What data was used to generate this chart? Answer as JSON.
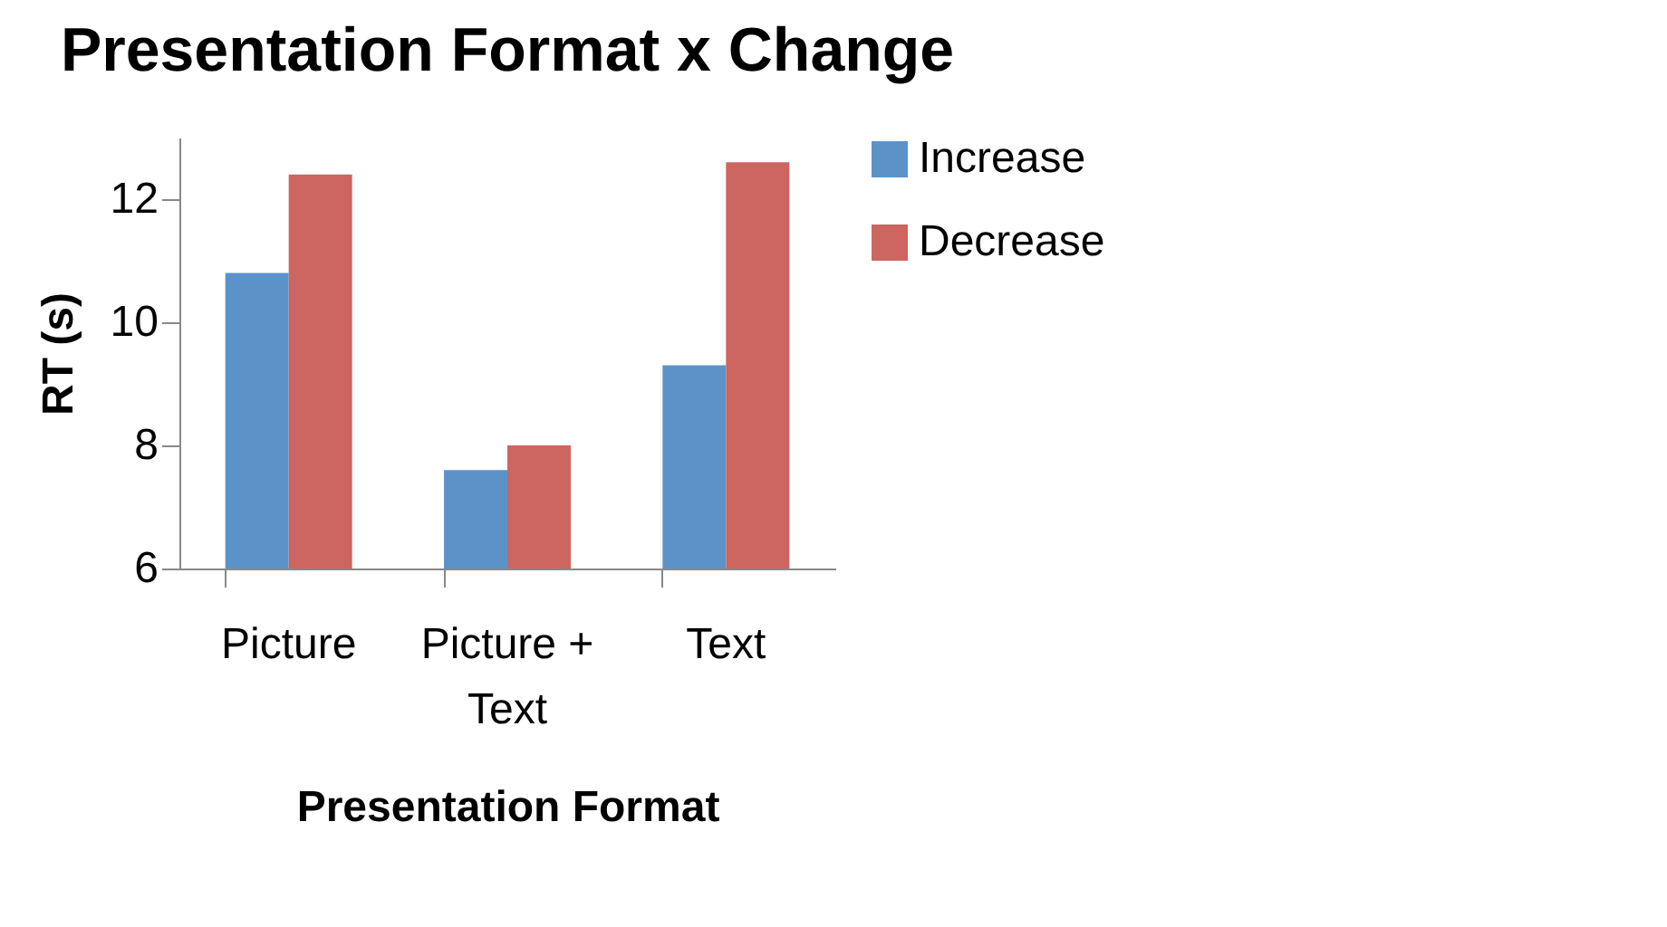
{
  "chart_data": {
    "type": "bar",
    "title": "Presentation Format x Change",
    "xlabel": "Presentation Format",
    "ylabel": "RT (s)",
    "categories": [
      "Picture",
      "Picture + Text",
      "Text"
    ],
    "series": [
      {
        "name": "Increase",
        "color": "#5b93c9",
        "values": [
          10.8,
          7.6,
          9.3
        ]
      },
      {
        "name": "Decrease",
        "color": "#cd6560",
        "values": [
          12.4,
          8.0,
          12.6
        ]
      }
    ],
    "ylim": [
      6,
      13
    ],
    "yticks": [
      6,
      8,
      10,
      12
    ],
    "grid": false,
    "legend": "right"
  }
}
